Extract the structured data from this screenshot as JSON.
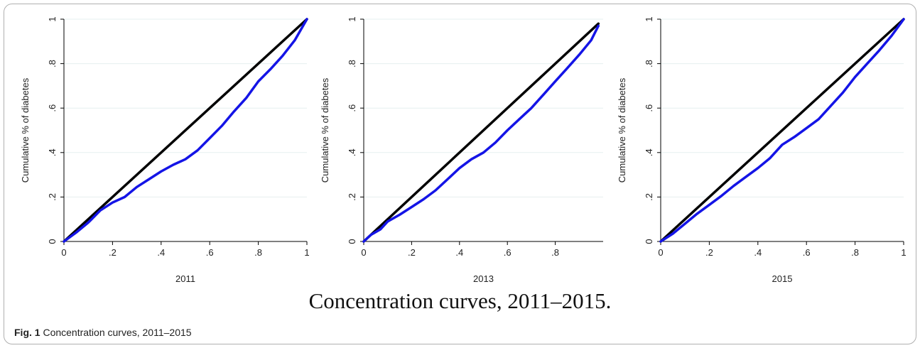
{
  "figure": {
    "title": "Concentration curves, 2011–2015.",
    "caption_label": "Fig. 1",
    "caption_text": "Concentration curves, 2011–2015"
  },
  "colors": {
    "equality_line": "#000000",
    "curve": "#1414e6",
    "grid": "#e6efef",
    "axis": "#000000"
  },
  "chart_data": [
    {
      "type": "line",
      "xlabel": "2011",
      "ylabel": "Cumulative % of diabetes",
      "xlim": [
        0,
        1
      ],
      "ylim": [
        0,
        1
      ],
      "x_ticks": [
        "0",
        ".2",
        ".4",
        ".6",
        ".8",
        "1"
      ],
      "y_ticks": [
        "0",
        ".2",
        ".4",
        ".6",
        ".8",
        "1"
      ],
      "x_tick_values": [
        0,
        0.2,
        0.4,
        0.6,
        0.8,
        1
      ],
      "y_tick_values": [
        0,
        0.2,
        0.4,
        0.6,
        0.8,
        1
      ],
      "grid": true,
      "series": [
        {
          "role": "equality",
          "x": [
            0,
            1
          ],
          "y": [
            0,
            1
          ]
        },
        {
          "role": "curve",
          "x": [
            0,
            0.05,
            0.1,
            0.15,
            0.2,
            0.25,
            0.3,
            0.35,
            0.4,
            0.45,
            0.5,
            0.55,
            0.6,
            0.65,
            0.7,
            0.75,
            0.8,
            0.85,
            0.9,
            0.95,
            1
          ],
          "y": [
            0,
            0.04,
            0.085,
            0.14,
            0.175,
            0.2,
            0.245,
            0.28,
            0.315,
            0.345,
            0.37,
            0.41,
            0.465,
            0.52,
            0.585,
            0.645,
            0.72,
            0.775,
            0.835,
            0.905,
            1
          ]
        }
      ]
    },
    {
      "type": "line",
      "xlabel": "2013",
      "ylabel": "Cumulative % of diabetes",
      "xlim": [
        0,
        1
      ],
      "ylim": [
        0,
        1
      ],
      "x_ticks": [
        "0",
        ".2",
        ".4",
        ".6",
        ".8"
      ],
      "y_ticks": [
        "0",
        ".2",
        ".4",
        ".6",
        ".8",
        "1"
      ],
      "x_tick_values": [
        0,
        0.2,
        0.4,
        0.6,
        0.8
      ],
      "y_tick_values": [
        0,
        0.2,
        0.4,
        0.6,
        0.8,
        1
      ],
      "grid": true,
      "series": [
        {
          "role": "equality",
          "x": [
            0,
            0.98
          ],
          "y": [
            0,
            0.98
          ]
        },
        {
          "role": "curve",
          "x": [
            0,
            0.03,
            0.07,
            0.1,
            0.15,
            0.2,
            0.25,
            0.3,
            0.35,
            0.4,
            0.45,
            0.5,
            0.55,
            0.6,
            0.65,
            0.7,
            0.75,
            0.8,
            0.85,
            0.9,
            0.95,
            0.98
          ],
          "y": [
            0,
            0.03,
            0.055,
            0.09,
            0.12,
            0.155,
            0.19,
            0.23,
            0.28,
            0.33,
            0.37,
            0.4,
            0.445,
            0.5,
            0.55,
            0.6,
            0.66,
            0.72,
            0.78,
            0.84,
            0.905,
            0.97
          ]
        }
      ]
    },
    {
      "type": "line",
      "xlabel": "2015",
      "ylabel": "Cumulative % of diabetes",
      "xlim": [
        0,
        1
      ],
      "ylim": [
        0,
        1
      ],
      "x_ticks": [
        "0",
        ".2",
        ".4",
        ".6",
        ".8",
        "1"
      ],
      "y_ticks": [
        "0",
        ".2",
        ".4",
        ".6",
        ".8",
        "1"
      ],
      "x_tick_values": [
        0,
        0.2,
        0.4,
        0.6,
        0.8,
        1
      ],
      "y_tick_values": [
        0,
        0.2,
        0.4,
        0.6,
        0.8,
        1
      ],
      "grid": true,
      "series": [
        {
          "role": "equality",
          "x": [
            0,
            1
          ],
          "y": [
            0,
            1
          ]
        },
        {
          "role": "curve",
          "x": [
            0,
            0.05,
            0.1,
            0.15,
            0.2,
            0.25,
            0.3,
            0.35,
            0.4,
            0.45,
            0.5,
            0.55,
            0.6,
            0.65,
            0.7,
            0.75,
            0.8,
            0.85,
            0.9,
            0.95,
            1
          ],
          "y": [
            0,
            0.035,
            0.08,
            0.125,
            0.165,
            0.205,
            0.25,
            0.29,
            0.33,
            0.375,
            0.435,
            0.47,
            0.51,
            0.55,
            0.61,
            0.67,
            0.74,
            0.8,
            0.86,
            0.925,
            1
          ]
        }
      ]
    }
  ]
}
